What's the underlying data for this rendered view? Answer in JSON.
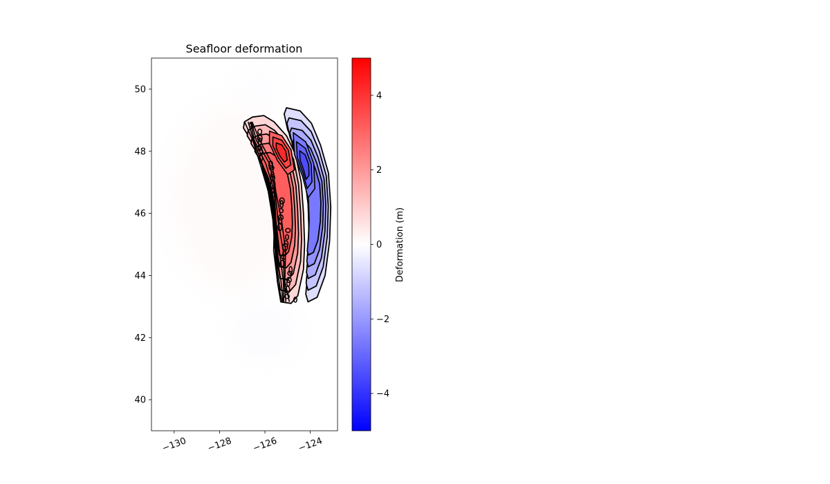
{
  "chart_data": {
    "type": "heatmap",
    "title": "Seafloor deformation",
    "xlabel": "",
    "ylabel": "",
    "xlim": [
      -131,
      -122.8
    ],
    "ylim": [
      39,
      51
    ],
    "x_ticks": [
      -130,
      -128,
      -126,
      -124
    ],
    "x_tick_labels": [
      "−130",
      "−128",
      "−126",
      "−124"
    ],
    "y_ticks": [
      40,
      42,
      44,
      46,
      48,
      50
    ],
    "y_tick_labels": [
      "40",
      "42",
      "44",
      "46",
      "48",
      "50"
    ],
    "grid": false,
    "colormap": "bwr",
    "colors": {
      "low": "#0000ff",
      "mid": "#ffffff",
      "high": "#ff0000",
      "contour": "#000000"
    },
    "colorbar": {
      "label": "Deformation (m)",
      "range": [
        -5,
        5
      ],
      "ticks": [
        -4,
        -2,
        0,
        2,
        4
      ],
      "tick_labels": [
        "−4",
        "−2",
        "0",
        "2",
        "4"
      ]
    },
    "uplift_zone": {
      "sign": "positive",
      "peak_deformation_m": 4.2,
      "peak_location": [
        -125.0,
        48.0
      ],
      "outline": [
        [
          -126.9,
          48.95
        ],
        [
          -126.55,
          49.1
        ],
        [
          -126.05,
          49.15
        ],
        [
          -125.6,
          48.95
        ],
        [
          -125.05,
          48.5
        ],
        [
          -124.65,
          47.9
        ],
        [
          -124.4,
          47.0
        ],
        [
          -124.3,
          46.0
        ],
        [
          -124.25,
          45.0
        ],
        [
          -124.3,
          44.2
        ],
        [
          -124.55,
          43.35
        ],
        [
          -124.85,
          43.1
        ],
        [
          -125.3,
          43.15
        ],
        [
          -125.45,
          43.8
        ],
        [
          -125.55,
          44.8
        ],
        [
          -125.65,
          45.8
        ],
        [
          -125.85,
          46.7
        ],
        [
          -126.15,
          47.6
        ],
        [
          -126.6,
          48.35
        ],
        [
          -126.95,
          48.75
        ]
      ],
      "high_outline": [
        [
          -125.8,
          48.65
        ],
        [
          -125.25,
          48.5
        ],
        [
          -124.85,
          48.05
        ],
        [
          -124.7,
          47.4
        ],
        [
          -125.0,
          47.25
        ],
        [
          -125.45,
          47.7
        ],
        [
          -125.8,
          48.25
        ]
      ]
    },
    "subsidence_zone": {
      "sign": "negative",
      "peak_deformation_m": -3.5,
      "peak_location": [
        -124.1,
        47.5
      ],
      "outline": [
        [
          -125.05,
          49.4
        ],
        [
          -124.45,
          49.3
        ],
        [
          -123.95,
          48.9
        ],
        [
          -123.55,
          48.2
        ],
        [
          -123.2,
          47.3
        ],
        [
          -123.1,
          46.2
        ],
        [
          -123.15,
          45.1
        ],
        [
          -123.35,
          44.0
        ],
        [
          -123.7,
          43.3
        ],
        [
          -124.1,
          43.15
        ],
        [
          -124.2,
          43.4
        ],
        [
          -124.1,
          44.2
        ],
        [
          -124.05,
          45.2
        ],
        [
          -124.1,
          46.3
        ],
        [
          -124.25,
          47.2
        ],
        [
          -124.6,
          48.0
        ],
        [
          -125.0,
          48.7
        ],
        [
          -125.15,
          49.2
        ]
      ],
      "strong_outline": [
        [
          -124.75,
          48.6
        ],
        [
          -124.2,
          48.3
        ],
        [
          -123.85,
          47.6
        ],
        [
          -123.8,
          46.8
        ],
        [
          -124.1,
          46.5
        ],
        [
          -124.35,
          47.2
        ],
        [
          -124.7,
          47.9
        ]
      ]
    }
  }
}
